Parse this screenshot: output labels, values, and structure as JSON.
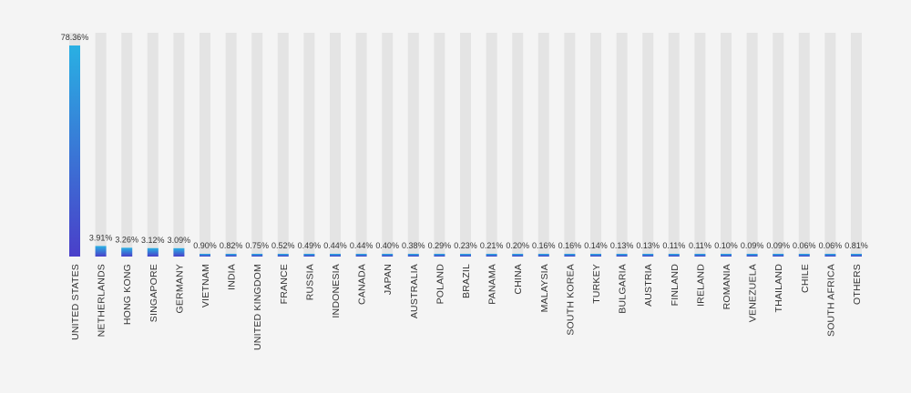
{
  "chart_data": {
    "type": "bar",
    "orientation": "vertical",
    "categories": [
      "UNITED STATES",
      "NETHERLANDS",
      "HONG KONG",
      "SINGAPORE",
      "GERMANY",
      "VIETNAM",
      "INDIA",
      "UNITED KINGDOM",
      "FRANCE",
      "RUSSIA",
      "INDONESIA",
      "CANADA",
      "JAPAN",
      "AUSTRALIA",
      "POLAND",
      "BRAZIL",
      "PANAMA",
      "CHINA",
      "MALAYSIA",
      "SOUTH KOREA",
      "TURKEY",
      "BULGARIA",
      "AUSTRIA",
      "FINLAND",
      "IRELAND",
      "ROMANIA",
      "VENEZUELA",
      "THAILAND",
      "CHILE",
      "SOUTH AFRICA",
      "OTHERS"
    ],
    "values": [
      78.36,
      3.91,
      3.26,
      3.12,
      3.09,
      0.9,
      0.82,
      0.75,
      0.52,
      0.49,
      0.44,
      0.44,
      0.4,
      0.38,
      0.29,
      0.23,
      0.21,
      0.2,
      0.16,
      0.16,
      0.14,
      0.13,
      0.13,
      0.11,
      0.11,
      0.1,
      0.09,
      0.09,
      0.06,
      0.06,
      0.81
    ],
    "value_labels": [
      "78.36%",
      "3.91%",
      "3.26%",
      "3.12%",
      "3.09%",
      "0.90%",
      "0.82%",
      "0.75%",
      "0.52%",
      "0.49%",
      "0.44%",
      "0.44%",
      "0.40%",
      "0.38%",
      "0.29%",
      "0.23%",
      "0.21%",
      "0.20%",
      "0.16%",
      "0.16%",
      "0.14%",
      "0.13%",
      "0.13%",
      "0.11%",
      "0.11%",
      "0.10%",
      "0.09%",
      "0.09%",
      "0.06%",
      "0.06%",
      "0.81%"
    ],
    "ylim": [
      0,
      78.36
    ],
    "background_bars": true,
    "grid": false,
    "legend": "none",
    "colors": {
      "background": "#f4f4f4",
      "track": "#e4e4e4",
      "bar_top": "#29b0e3",
      "bar_bottom": "#4a3fc9",
      "text": "#333333"
    }
  }
}
